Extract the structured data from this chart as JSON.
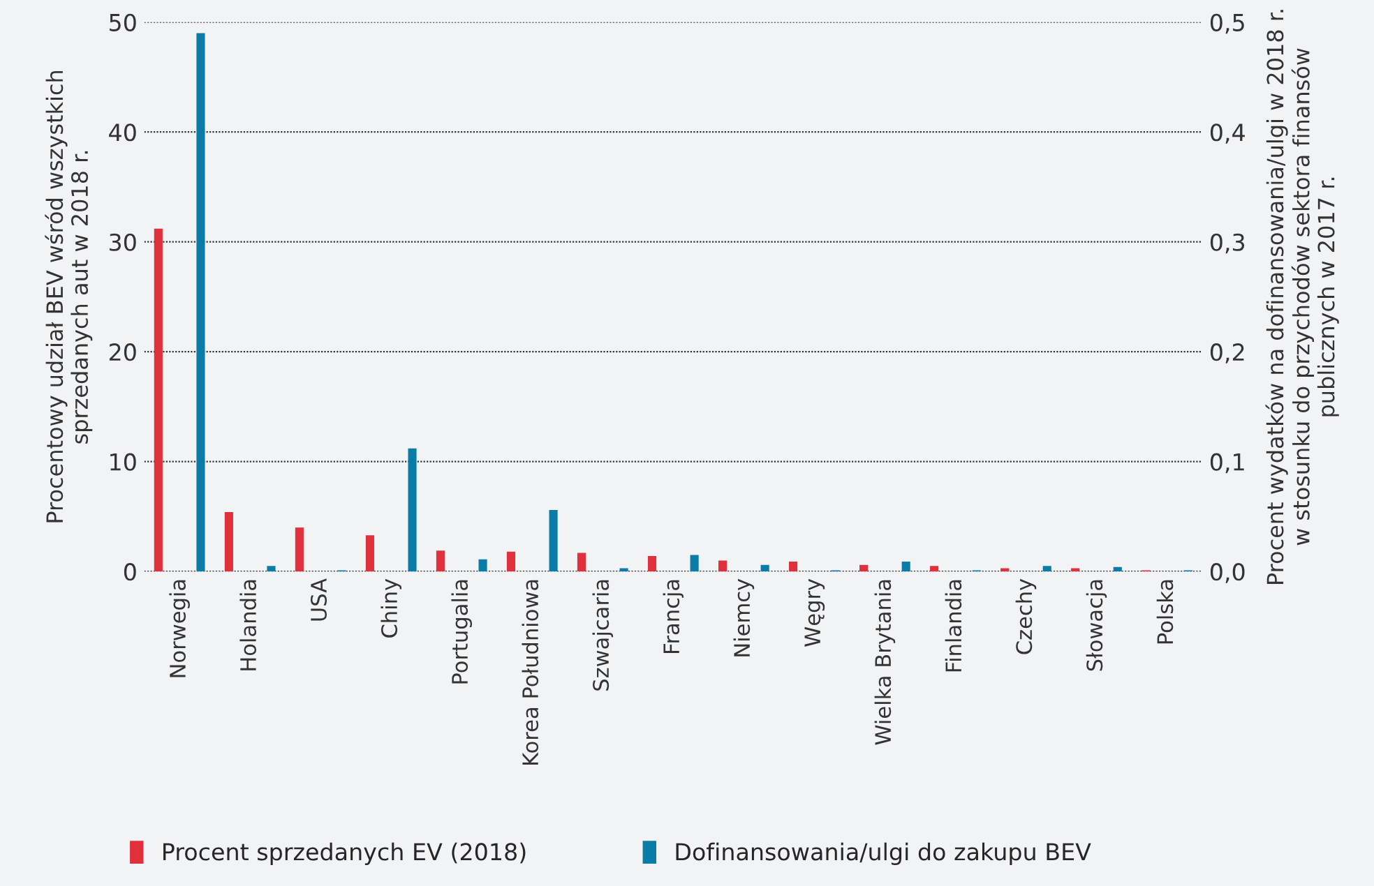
{
  "chart_data": {
    "type": "bar",
    "categories": [
      "Norwegia",
      "Holandia",
      "USA",
      "Chiny",
      "Portugalia",
      "Korea Południowa",
      "Szwajcaria",
      "Francja",
      "Niemcy",
      "Węgry",
      "Wielka Brytania",
      "Finlandia",
      "Czechy",
      "Słowacja",
      "Polska"
    ],
    "series": [
      {
        "name": "Procent sprzedanych EV (2018)",
        "color": "#e0303c",
        "values": [
          31.2,
          5.4,
          4.0,
          3.3,
          1.9,
          1.8,
          1.7,
          1.4,
          1.0,
          0.9,
          0.6,
          0.5,
          0.3,
          0.3,
          0.1
        ]
      },
      {
        "name": "Dofinansowania/ulgi do zakupu BEV",
        "color": "#0a7ca8",
        "axis": "y2",
        "values": [
          0.49,
          0.005,
          0.001,
          0.112,
          0.011,
          0.056,
          0.003,
          0.015,
          0.006,
          0.001,
          0.009,
          0.001,
          0.005,
          0.004,
          0.001
        ]
      }
    ],
    "ylabel": "Procentowy udział BEV wśród wszystkich sprzedanych aut w 2018 r.",
    "y2label": "Procent wydatków na dofinansowania/ulgi w 2018 r. w stosunku do przychodów sektora finansów publicznych w 2017 r.",
    "ylim": [
      0,
      50
    ],
    "yticks": [
      0,
      10,
      20,
      30,
      40,
      50
    ],
    "y2lim": [
      0,
      0.5
    ],
    "y2ticks": [
      {
        "value": 0,
        "label": "0,0"
      },
      {
        "value": 0.1,
        "label": "0,1"
      },
      {
        "value": 0.2,
        "label": "0,2"
      },
      {
        "value": 0.3,
        "label": "0,3"
      },
      {
        "value": 0.4,
        "label": "0,4"
      },
      {
        "value": 0.5,
        "label": "0,5"
      }
    ],
    "grid": "y",
    "legend": "bottom"
  }
}
